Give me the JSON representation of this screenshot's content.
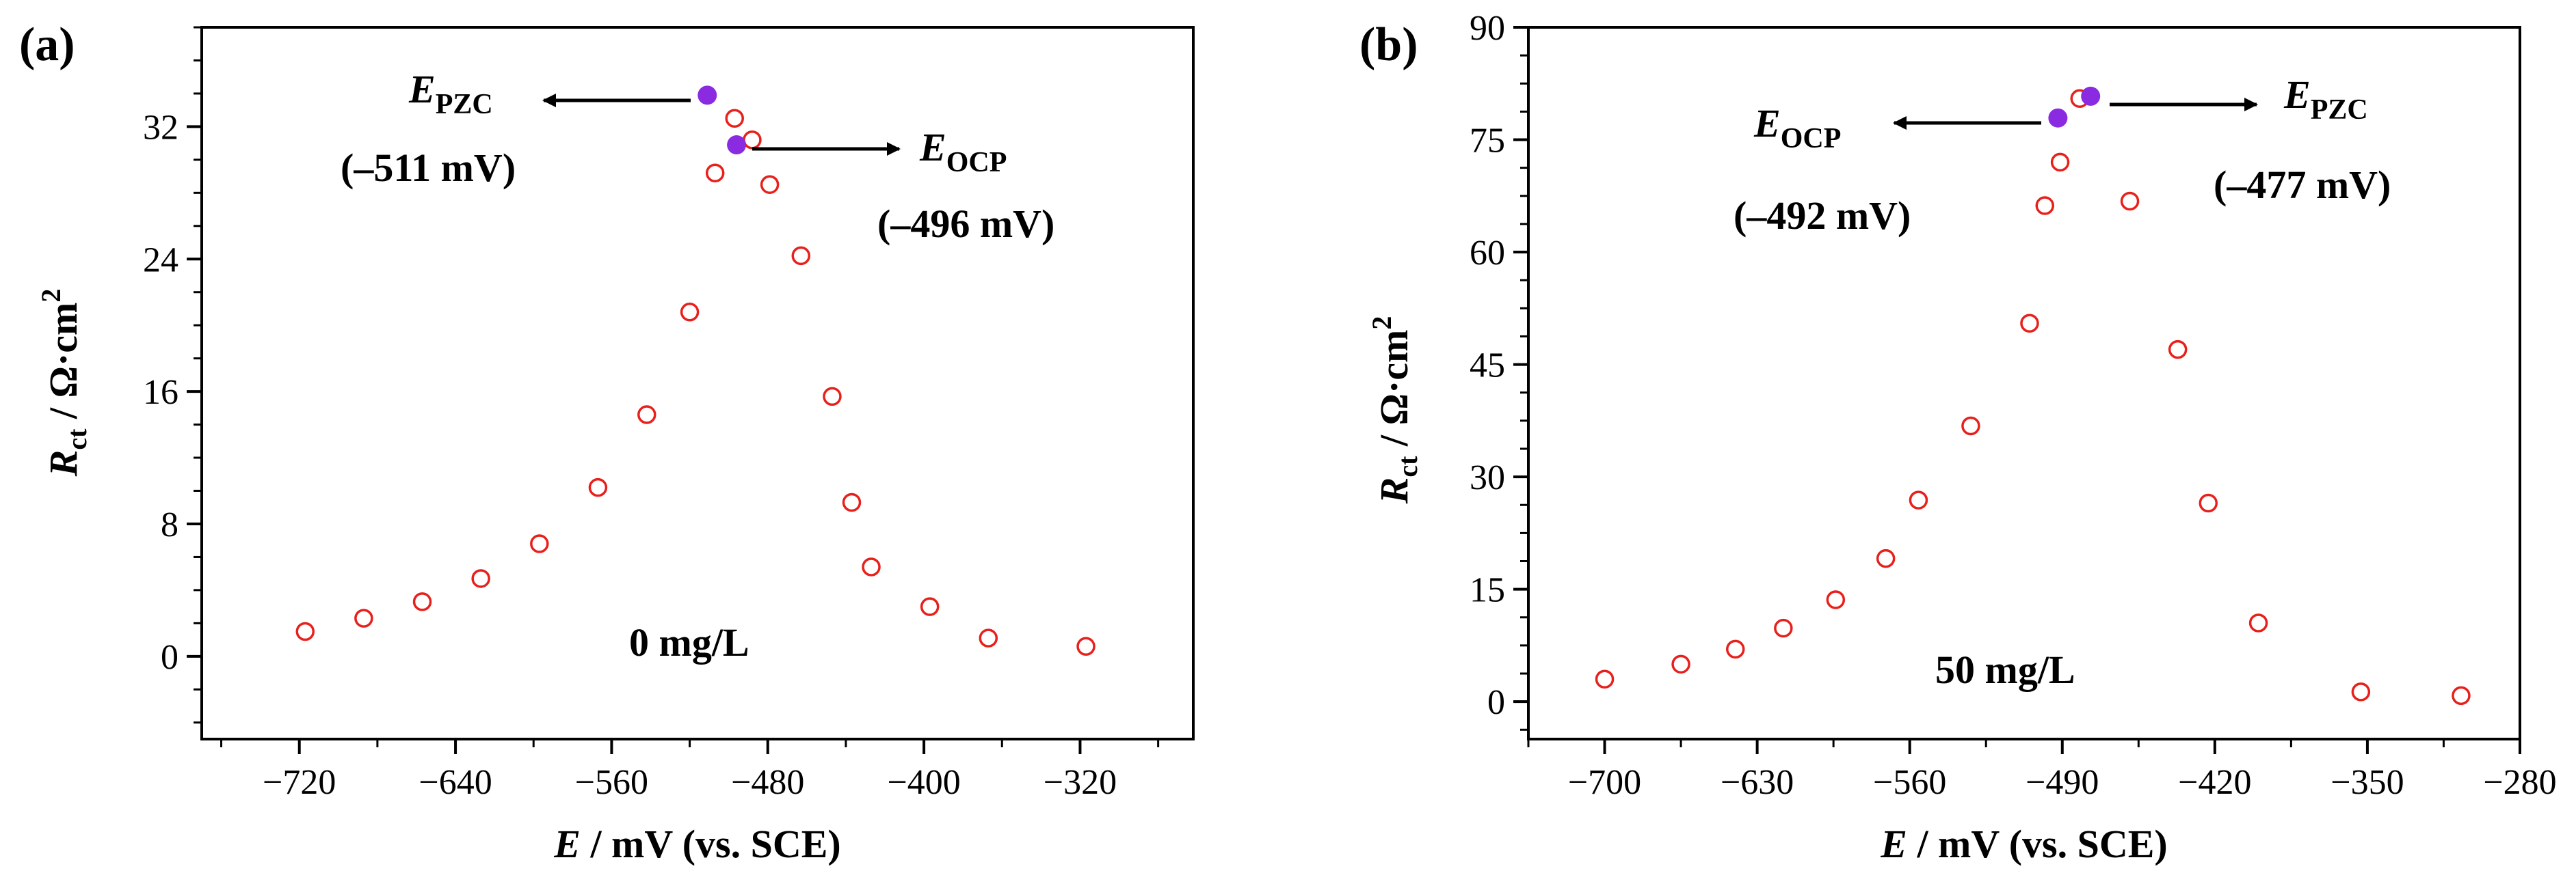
{
  "chart_data": [
    {
      "type": "scatter",
      "panel_label": "(a)",
      "xlabel": {
        "italic": "E",
        "rest": " / mV (vs. SCE)"
      },
      "ylabel": {
        "italic": "R",
        "sub": "ct",
        "rest": " / Ω·cm",
        "sup": "2"
      },
      "xlim": [
        -770,
        -262
      ],
      "ylim": [
        -5,
        38
      ],
      "xticks": [
        -720,
        -640,
        -560,
        -480,
        -400,
        -320
      ],
      "yticks": [
        0,
        8,
        16,
        24,
        32
      ],
      "condition": "0 mg/L",
      "series": [
        {
          "name": "Rct",
          "marker": "open-circle",
          "color": "#e8201c",
          "x": [
            -717,
            -687,
            -657,
            -627,
            -597,
            -567,
            -542,
            -520,
            -507,
            -497,
            -488,
            -479,
            -463,
            -447,
            -437,
            -427,
            -397,
            -367,
            -317
          ],
          "y": [
            1.5,
            2.3,
            3.3,
            4.7,
            6.8,
            10.2,
            14.6,
            20.8,
            29.2,
            32.5,
            31.2,
            28.5,
            24.2,
            15.7,
            9.3,
            5.4,
            3.0,
            1.1,
            0.6
          ]
        },
        {
          "name": "markers",
          "marker": "filled-circle",
          "color": "#8a2be2",
          "x": [
            -511,
            -496
          ],
          "y": [
            33.9,
            30.9
          ]
        }
      ],
      "annotations": [
        {
          "main": "E",
          "sub": "PZC",
          "value": "(–511 mV)",
          "arrow": "left"
        },
        {
          "main": "E",
          "sub": "OCP",
          "value": "(–496 mV)",
          "arrow": "right"
        }
      ]
    },
    {
      "type": "scatter",
      "panel_label": "(b)",
      "xlabel": {
        "italic": "E",
        "rest": " / mV (vs. SCE)"
      },
      "ylabel": {
        "italic": "R",
        "sub": "ct",
        "rest": " / Ω·cm",
        "sup": "2"
      },
      "xlim": [
        -735,
        -280
      ],
      "ylim": [
        -5,
        90
      ],
      "xticks": [
        -700,
        -630,
        -560,
        -490,
        -420,
        -350,
        -280
      ],
      "yticks": [
        0,
        15,
        30,
        45,
        60,
        75,
        90
      ],
      "condition": "50 mg/L",
      "series": [
        {
          "name": "Rct",
          "marker": "open-circle",
          "color": "#e8201c",
          "x": [
            -700,
            -665,
            -640,
            -618,
            -594,
            -571,
            -556,
            -532,
            -505,
            -498,
            -491,
            -482,
            -459,
            -437,
            -423,
            -400,
            -353,
            -307
          ],
          "y": [
            3,
            5,
            7,
            9.8,
            13.6,
            19.1,
            26.9,
            36.8,
            50.5,
            66.2,
            72,
            80.5,
            66.8,
            47,
            26.5,
            10.5,
            1.3,
            0.8
          ]
        },
        {
          "name": "markers",
          "marker": "filled-circle",
          "color": "#8a2be2",
          "x": [
            -492,
            -477
          ],
          "y": [
            77.9,
            80.8
          ]
        }
      ],
      "annotations": [
        {
          "main": "E",
          "sub": "OCP",
          "value": "(–492 mV)",
          "arrow": "left"
        },
        {
          "main": "E",
          "sub": "PZC",
          "value": "(–477 mV)",
          "arrow": "right"
        }
      ]
    }
  ]
}
